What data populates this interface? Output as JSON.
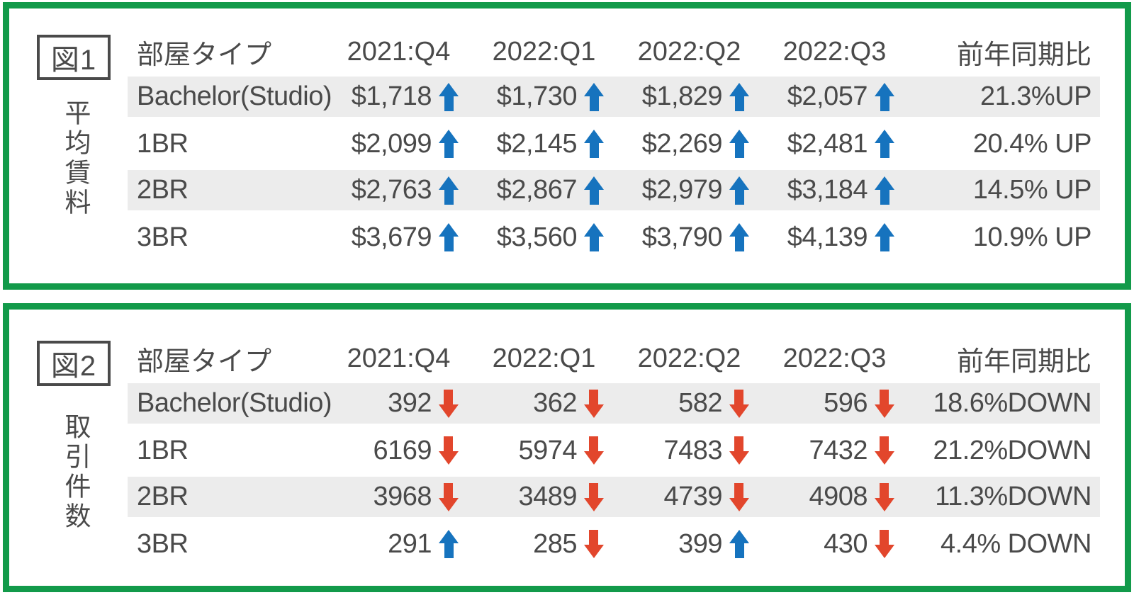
{
  "colors": {
    "frame_green": "#129a4a",
    "up_blue": "#1673be",
    "down_red": "#e2462c",
    "stripe_gray": "#ececec",
    "text_gray": "#4a4a4a"
  },
  "chart_data": [
    {
      "type": "table",
      "figure_label": "図1",
      "title": "平均賃料",
      "columns": [
        "部屋タイプ",
        "2021:Q4",
        "2022:Q1",
        "2022:Q2",
        "2022:Q3",
        "前年同期比"
      ],
      "rows": [
        {
          "label": "Bachelor(Studio)",
          "values": [
            "$1,718",
            "$1,730",
            "$1,829",
            "$2,057"
          ],
          "dirs": [
            "up",
            "up",
            "up",
            "up"
          ],
          "yoy": "21.3%UP"
        },
        {
          "label": "1BR",
          "values": [
            "$2,099",
            "$2,145",
            "$2,269",
            "$2,481"
          ],
          "dirs": [
            "up",
            "up",
            "up",
            "up"
          ],
          "yoy": "20.4% UP"
        },
        {
          "label": "2BR",
          "values": [
            "$2,763",
            "$2,867",
            "$2,979",
            "$3,184"
          ],
          "dirs": [
            "up",
            "up",
            "up",
            "up"
          ],
          "yoy": "14.5% UP"
        },
        {
          "label": "3BR",
          "values": [
            "$3,679",
            "$3,560",
            "$3,790",
            "$4,139"
          ],
          "dirs": [
            "up",
            "up",
            "up",
            "up"
          ],
          "yoy": "10.9% UP"
        }
      ]
    },
    {
      "type": "table",
      "figure_label": "図2",
      "title": "取引件数",
      "columns": [
        "部屋タイプ",
        "2021:Q4",
        "2022:Q1",
        "2022:Q2",
        "2022:Q3",
        "前年同期比"
      ],
      "rows": [
        {
          "label": "Bachelor(Studio)",
          "values": [
            "392",
            "362",
            "582",
            "596"
          ],
          "dirs": [
            "down",
            "down",
            "down",
            "down"
          ],
          "yoy": "18.6%DOWN"
        },
        {
          "label": "1BR",
          "values": [
            "6169",
            "5974",
            "7483",
            "7432"
          ],
          "dirs": [
            "down",
            "down",
            "down",
            "down"
          ],
          "yoy": "21.2%DOWN"
        },
        {
          "label": "2BR",
          "values": [
            "3968",
            "3489",
            "4739",
            "4908"
          ],
          "dirs": [
            "down",
            "down",
            "down",
            "down"
          ],
          "yoy": "11.3%DOWN"
        },
        {
          "label": "3BR",
          "values": [
            "291",
            "285",
            "399",
            "430"
          ],
          "dirs": [
            "up",
            "down",
            "up",
            "down"
          ],
          "yoy": "4.4% DOWN"
        }
      ]
    }
  ]
}
